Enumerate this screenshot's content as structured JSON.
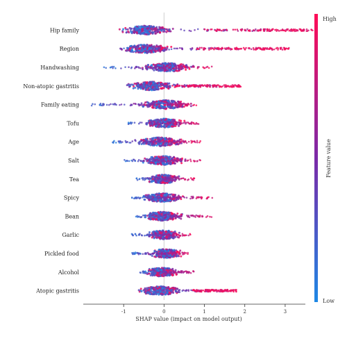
{
  "chart_data": {
    "type": "scatter",
    "subtype": "shap-beeswarm",
    "title": "",
    "xlabel": "SHAP value (impact on model output)",
    "ylabel": "",
    "xlim": [
      -2,
      3.5
    ],
    "xticks": [
      -1,
      0,
      1,
      2,
      3
    ],
    "features": [
      {
        "name": "Hip family",
        "min": -0.6,
        "max": 3.7,
        "center": -0.45,
        "red_tail": [
          1.0,
          3.7
        ]
      },
      {
        "name": "Region",
        "min": -1.1,
        "max": 3.1,
        "center": -0.45,
        "red_tail": [
          0.8,
          3.1
        ]
      },
      {
        "name": "Handwashing",
        "min": -1.5,
        "max": 1.2,
        "center": 0.1
      },
      {
        "name": "Non-atopic gastritis",
        "min": -0.5,
        "max": 1.9,
        "center": -0.3,
        "red_tail": [
          0.2,
          1.9
        ]
      },
      {
        "name": "Family eating",
        "min": -1.8,
        "max": 0.8,
        "center": 0.05
      },
      {
        "name": "Tofu",
        "min": -0.9,
        "max": 0.9,
        "center": 0.0
      },
      {
        "name": "Age",
        "min": -1.3,
        "max": 0.9,
        "center": -0.1
      },
      {
        "name": "Salt",
        "min": -1.0,
        "max": 0.9,
        "center": 0.0
      },
      {
        "name": "Tea",
        "min": -0.7,
        "max": 0.8,
        "center": 0.0
      },
      {
        "name": "Spicy",
        "min": -0.8,
        "max": 1.2,
        "center": -0.05
      },
      {
        "name": "Bean",
        "min": -0.7,
        "max": 1.2,
        "center": -0.05
      },
      {
        "name": "Garlic",
        "min": -0.8,
        "max": 0.7,
        "center": 0.0
      },
      {
        "name": "Pickled food",
        "min": -0.8,
        "max": 0.6,
        "center": 0.05
      },
      {
        "name": "Alcohol",
        "min": -0.6,
        "max": 0.9,
        "center": -0.05
      },
      {
        "name": "Atopic gastritis",
        "min": -0.2,
        "max": 1.8,
        "center": -0.1,
        "red_tail": [
          0.7,
          1.8
        ]
      }
    ],
    "colorbar": {
      "label": "Feature value",
      "high_label": "High",
      "low_label": "Low",
      "high_color": "#ff0d57",
      "low_color": "#1e88e5"
    },
    "zero_line": true,
    "grid": false
  }
}
